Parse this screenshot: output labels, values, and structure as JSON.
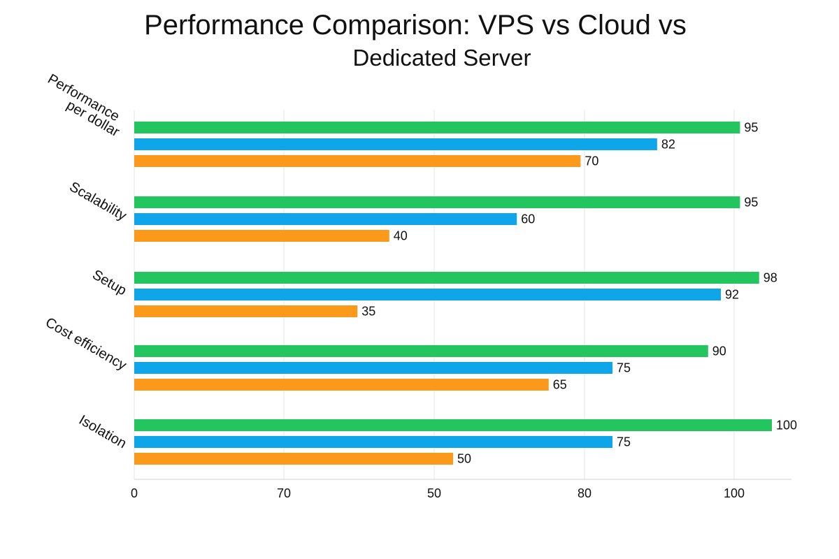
{
  "chart_data": {
    "type": "bar",
    "orientation": "horizontal",
    "title_line1": "Performance Comparison: VPS vs Cloud vs",
    "title_line2": "Dedicated Server",
    "categories": [
      "Performance per dollar",
      "Scalability",
      "Setup",
      "Cost efficiency",
      "Isolation"
    ],
    "category_label_lines": [
      [
        "Performance",
        "per dollar"
      ],
      [
        "Scalability"
      ],
      [
        "Setup"
      ],
      [
        "Cost efficiency"
      ],
      [
        "Isolation"
      ]
    ],
    "series": [
      {
        "color": "#22c55e",
        "values": [
          95,
          95,
          98,
          90,
          100
        ]
      },
      {
        "color": "#0ea5e9",
        "values": [
          82,
          60,
          92,
          75,
          75
        ]
      },
      {
        "color": "#fb9a1a",
        "values": [
          70,
          40,
          35,
          65,
          50
        ]
      }
    ],
    "x_tick_labels": [
      "0",
      "70",
      "50",
      "80",
      "100"
    ],
    "grid": true,
    "legend": "none"
  }
}
